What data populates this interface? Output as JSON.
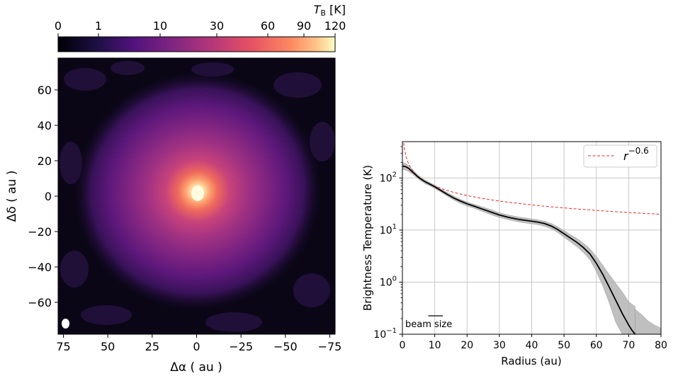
{
  "chart_data": [
    {
      "type": "heatmap",
      "colormap": "magma",
      "colorbar": {
        "label_main": "T",
        "label_sub": "B",
        "label_unit": "[K]",
        "ticks": [
          0,
          1,
          10,
          30,
          60,
          90,
          120
        ],
        "tick_labels": [
          "0",
          "1",
          "10",
          "30",
          "60",
          "90",
          "120"
        ],
        "placement": "top"
      },
      "xlabel": "Δα ( au )",
      "ylabel": "Δδ ( au )",
      "xlim": [
        78,
        -78
      ],
      "ylim": [
        -78,
        78
      ],
      "xticks": [
        75,
        50,
        25,
        0,
        -25,
        -50,
        -75
      ],
      "xtick_labels": [
        "75",
        "50",
        "25",
        "0",
        "−25",
        "−50",
        "−75"
      ],
      "yticks": [
        60,
        40,
        20,
        0,
        -20,
        -40,
        -60
      ],
      "ytick_labels": [
        "60",
        "40",
        "20",
        "0",
        "−20",
        "−40",
        "−60"
      ],
      "peak_TB": 120,
      "beam_ellipse_center": [
        75,
        -72
      ]
    },
    {
      "type": "line",
      "xlabel": "Radius (au)",
      "ylabel": "Brightness Temperature (K)",
      "xlim": [
        0,
        80
      ],
      "ylim": [
        0.1,
        500
      ],
      "yscale": "log",
      "grid": true,
      "xticks": [
        0,
        10,
        20,
        30,
        40,
        50,
        60,
        70,
        80
      ],
      "xtick_labels": [
        "0",
        "10",
        "20",
        "30",
        "40",
        "50",
        "60",
        "70",
        "80"
      ],
      "yticks": [
        0.1,
        1,
        10,
        100
      ],
      "ytick_base": "10",
      "ytick_exponents": [
        "−1",
        "0",
        "1",
        "2"
      ],
      "legend_position": "top-right",
      "beam_label": "beam size",
      "beam_range": [
        8,
        12.5
      ],
      "series": [
        {
          "name": "profile",
          "color": "#000000",
          "x": [
            0,
            1,
            2,
            3,
            4,
            5,
            6,
            7,
            8,
            10,
            12,
            14,
            16,
            18,
            20,
            22,
            25,
            28,
            30,
            33,
            36,
            40,
            42,
            44,
            46,
            48,
            50,
            52,
            54,
            56,
            58,
            60,
            62,
            64,
            66,
            68,
            70,
            71,
            72
          ],
          "y": [
            170,
            165,
            152,
            133,
            117,
            103,
            93,
            85,
            79,
            68,
            57,
            48,
            41,
            36,
            32,
            29,
            25,
            21.5,
            19.5,
            17.5,
            16,
            14.8,
            14.2,
            13.3,
            12,
            10.3,
            8.5,
            7,
            5.8,
            4.6,
            3.5,
            2.3,
            1.4,
            0.8,
            0.45,
            0.25,
            0.15,
            0.12,
            0.1
          ],
          "band_upper": [
            200,
            190,
            172,
            148,
            128,
            112,
            101,
            92,
            85,
            73,
            61,
            52,
            44.5,
            39,
            34.5,
            31.5,
            27.5,
            24,
            21.5,
            19.3,
            17.8,
            16.4,
            15.7,
            14.8,
            13.4,
            11.7,
            9.8,
            8.2,
            6.9,
            5.6,
            4.4,
            3.1,
            2.1,
            1.4,
            0.95,
            0.65,
            0.42,
            0.38,
            0.34
          ],
          "band_lower": [
            145,
            142,
            134,
            119,
            106,
            95,
            86,
            78,
            73,
            63,
            53,
            44.5,
            37.5,
            32.5,
            29,
            26.5,
            22.5,
            19.2,
            17.5,
            15.7,
            14.3,
            13.2,
            12.7,
            11.8,
            10.6,
            9,
            7.3,
            5.9,
            4.8,
            3.7,
            2.7,
            1.6,
            0.85,
            0.4,
            0.17,
            0.1,
            0.1,
            0.1,
            0.1
          ]
        },
        {
          "name": "r^-0.6",
          "legend_base": "r",
          "legend_exponent": "−0.6",
          "color": "#e8292b",
          "style": "dashed",
          "formula": "70 * (r/10)^-0.6"
        },
        {
          "name": "band_tail",
          "x": [
            72,
            74,
            76,
            78,
            80
          ],
          "band_upper": [
            0.3,
            0.24,
            0.18,
            0.15,
            0.13
          ]
        }
      ]
    }
  ]
}
